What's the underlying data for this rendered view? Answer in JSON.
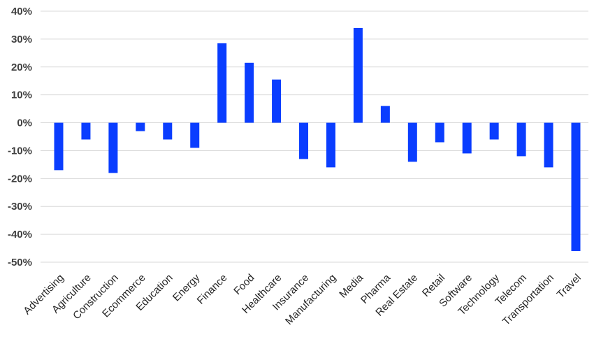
{
  "chart_data": {
    "type": "bar",
    "categories": [
      "Advertising",
      "Agriculture",
      "Construction",
      "Ecommerce",
      "Education",
      "Energy",
      "Finance",
      "Food",
      "Healthcare",
      "Insurance",
      "Manufacturing",
      "Media",
      "Pharma",
      "Real Estate",
      "Retail",
      "Software",
      "Technology",
      "Telecom",
      "Transportation",
      "Travel"
    ],
    "values": [
      -17,
      -6,
      -18,
      -3,
      -6,
      -9,
      28.5,
      21.5,
      15.5,
      -13,
      -16,
      34,
      6,
      -14,
      -7,
      -11,
      -6,
      -12,
      -16,
      -46
    ],
    "ylim": [
      -50,
      40
    ],
    "yticks": [
      "-50%",
      "-40%",
      "-30%",
      "-20%",
      "-10%",
      "0%",
      "10%",
      "20%",
      "30%",
      "40%"
    ],
    "grid": true,
    "bar_color": "#0a3dff",
    "title": "",
    "xlabel": "",
    "ylabel": ""
  }
}
